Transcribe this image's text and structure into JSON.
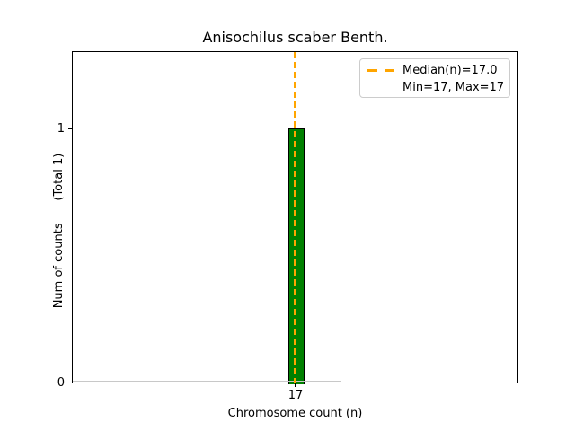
{
  "title": "Anisochilus scaber Benth.",
  "x_axis": {
    "label": "Chromosome count (n)",
    "ticks": [
      "17"
    ]
  },
  "y_axis": {
    "label": "Num of counts      (Total 1)",
    "ticks": [
      "1",
      "0"
    ]
  },
  "legend": {
    "line1": "Median(n)=17.0",
    "line2": "Min=17, Max=17"
  },
  "colors": {
    "bar_fill": "#008000",
    "bar_edge": "#000000",
    "median_line": "#FFA500",
    "axis": "#000000",
    "legend_border": "#cccccc",
    "background": "#ffffff"
  },
  "chart_data": {
    "type": "bar",
    "title": "Anisochilus scaber Benth.",
    "xlabel": "Chromosome count (n)",
    "ylabel": "Num of counts      (Total 1)",
    "categories": [
      17
    ],
    "values": [
      1
    ],
    "total_counts": 1,
    "median_n": 17.0,
    "min_n": 17,
    "max_n": 17,
    "xticks": [
      17
    ],
    "yticks": [
      0,
      1
    ],
    "ylim": [
      0,
      1.3
    ],
    "grid": false,
    "legend_position": "upper right",
    "legend_entries": [
      "Median(n)=17.0",
      "Min=17, Max=17"
    ],
    "bar_color": "#008000",
    "bar_edge_color": "#000000",
    "median_line_style": "dashed",
    "median_line_color": "#FFA500"
  }
}
